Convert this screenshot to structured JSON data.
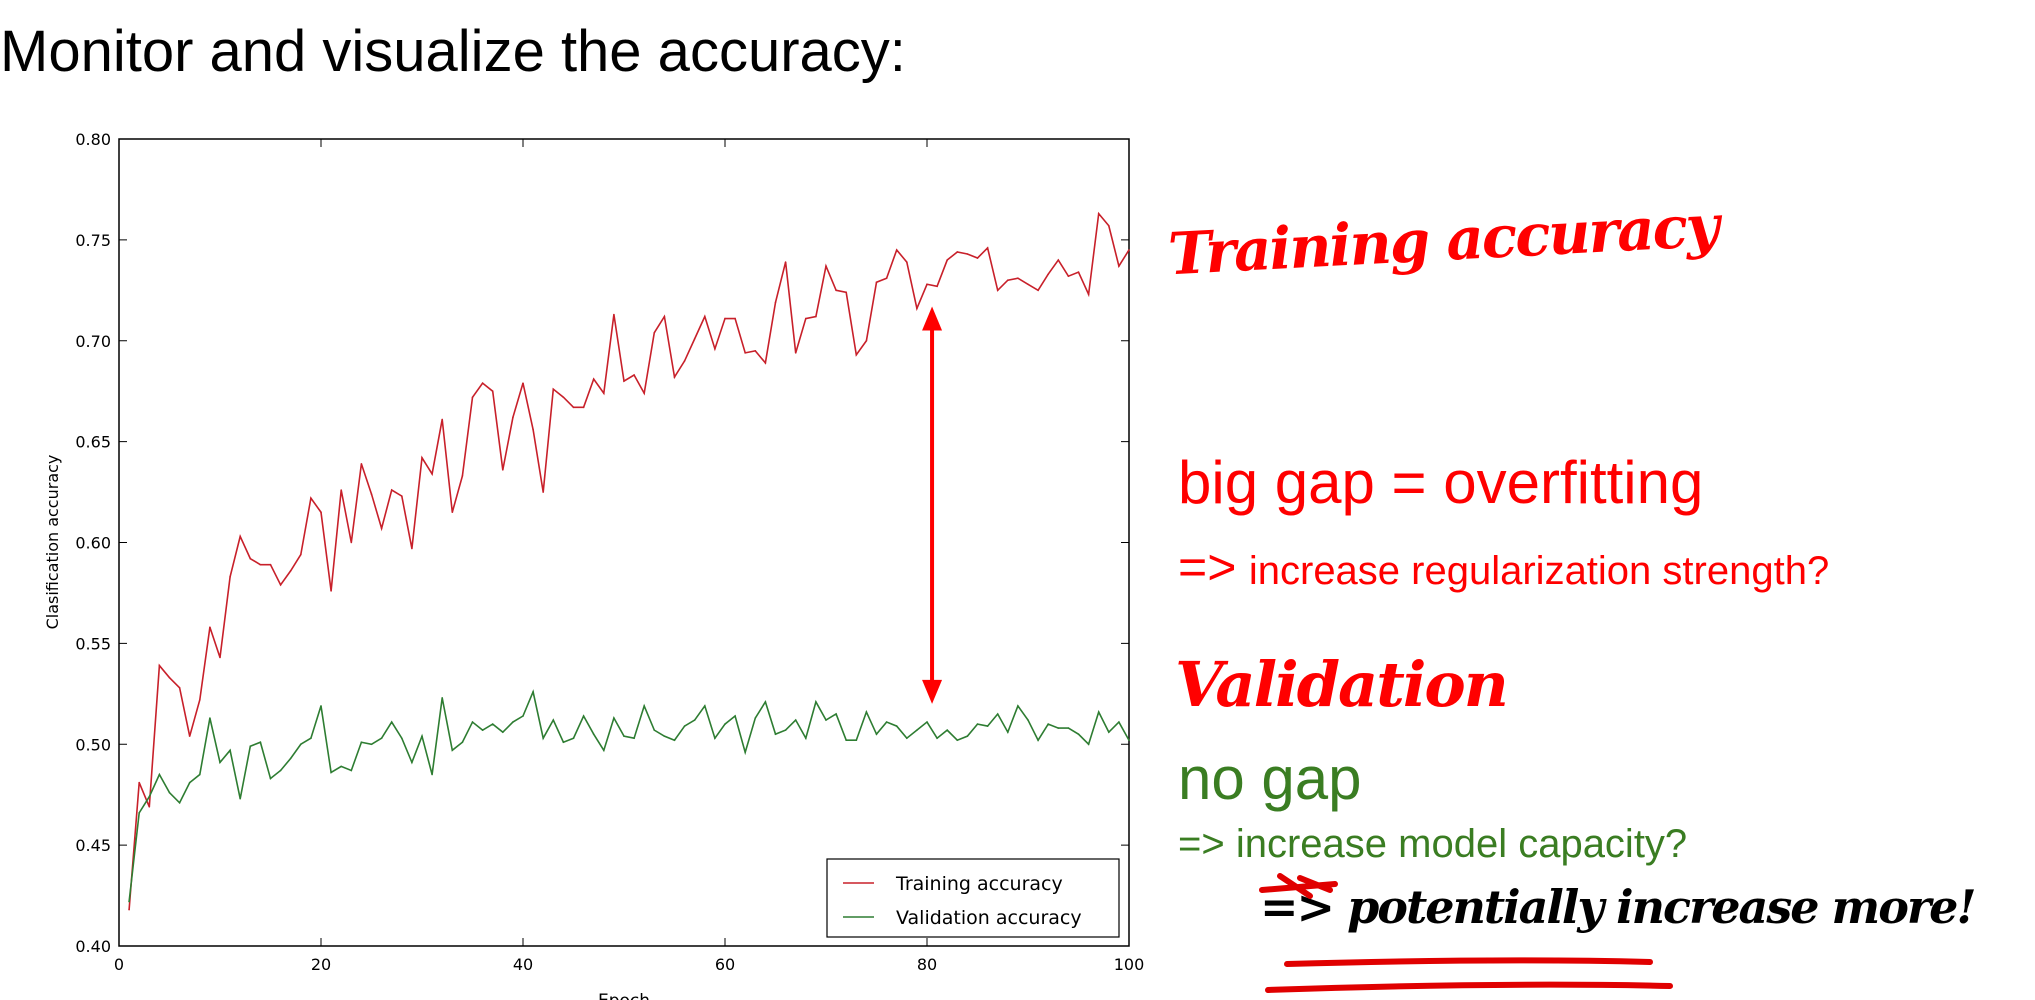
{
  "slide": {
    "title": "Monitor and visualize the accuracy:"
  },
  "annotations": {
    "training_handwritten": "Training accuracy",
    "overfit_heading": "big gap = overfitting",
    "overfit_arrow": "=>",
    "overfit_advice": "increase regularization strength?",
    "validation_handwritten": "Validation",
    "nogap_heading": "no gap",
    "nogap_advice": "=> increase model capacity?",
    "black_handwritten": "=> potentially increase more!",
    "colors": {
      "red": "#ff0000",
      "green": "#3a7d22",
      "black": "#000000"
    }
  },
  "chart_data": {
    "type": "line",
    "xlabel": "Epoch",
    "ylabel": "Clasification accuracy",
    "xlim": [
      0,
      100
    ],
    "ylim": [
      0.4,
      0.8
    ],
    "xticks": [
      "0",
      "20",
      "40",
      "60",
      "80",
      "100"
    ],
    "yticks": [
      "0.40",
      "0.45",
      "0.50",
      "0.55",
      "0.60",
      "0.65",
      "0.70",
      "0.75",
      "0.80"
    ],
    "grid": false,
    "legend_position": "bottom-right",
    "gap_arrow": {
      "x": 80.5,
      "y_from": 0.52,
      "y_to": 0.717,
      "color": "#ff0000"
    },
    "series": [
      {
        "name": "Training accuracy",
        "color": "#c8202a",
        "values": [
          0.418,
          0.481,
          0.469,
          0.539,
          0.533,
          0.528,
          0.504,
          0.522,
          0.558,
          0.543,
          0.583,
          0.603,
          0.592,
          0.589,
          0.589,
          0.579,
          0.586,
          0.594,
          0.622,
          0.615,
          0.576,
          0.626,
          0.6,
          0.639,
          0.624,
          0.607,
          0.626,
          0.623,
          0.597,
          0.642,
          0.634,
          0.661,
          0.615,
          0.633,
          0.672,
          0.679,
          0.675,
          0.636,
          0.662,
          0.679,
          0.656,
          0.625,
          0.676,
          0.672,
          0.667,
          0.667,
          0.681,
          0.674,
          0.713,
          0.68,
          0.683,
          0.674,
          0.704,
          0.712,
          0.682,
          0.69,
          0.701,
          0.712,
          0.696,
          0.711,
          0.711,
          0.694,
          0.695,
          0.689,
          0.719,
          0.739,
          0.694,
          0.711,
          0.712,
          0.737,
          0.725,
          0.724,
          0.693,
          0.7,
          0.729,
          0.731,
          0.745,
          0.739,
          0.716,
          0.728,
          0.727,
          0.74,
          0.744,
          0.743,
          0.741,
          0.746,
          0.725,
          0.73,
          0.731,
          0.728,
          0.725,
          0.733,
          0.74,
          0.732,
          0.734,
          0.723,
          0.763,
          0.757,
          0.737,
          0.745
        ]
      },
      {
        "name": "Validation accuracy",
        "color": "#2e7d32",
        "values": [
          0.422,
          0.466,
          0.474,
          0.485,
          0.476,
          0.471,
          0.481,
          0.485,
          0.513,
          0.491,
          0.497,
          0.473,
          0.499,
          0.501,
          0.483,
          0.487,
          0.493,
          0.5,
          0.503,
          0.519,
          0.486,
          0.489,
          0.487,
          0.501,
          0.5,
          0.503,
          0.511,
          0.503,
          0.491,
          0.504,
          0.485,
          0.523,
          0.497,
          0.501,
          0.511,
          0.507,
          0.51,
          0.506,
          0.511,
          0.514,
          0.526,
          0.503,
          0.512,
          0.501,
          0.503,
          0.514,
          0.505,
          0.497,
          0.513,
          0.504,
          0.503,
          0.519,
          0.507,
          0.504,
          0.502,
          0.509,
          0.512,
          0.519,
          0.503,
          0.51,
          0.514,
          0.496,
          0.513,
          0.521,
          0.505,
          0.507,
          0.512,
          0.503,
          0.521,
          0.512,
          0.515,
          0.502,
          0.502,
          0.516,
          0.505,
          0.511,
          0.509,
          0.503,
          0.507,
          0.511,
          0.503,
          0.507,
          0.502,
          0.504,
          0.51,
          0.509,
          0.515,
          0.506,
          0.519,
          0.512,
          0.502,
          0.51,
          0.508,
          0.508,
          0.505,
          0.5,
          0.516,
          0.506,
          0.511,
          0.502
        ]
      }
    ]
  }
}
